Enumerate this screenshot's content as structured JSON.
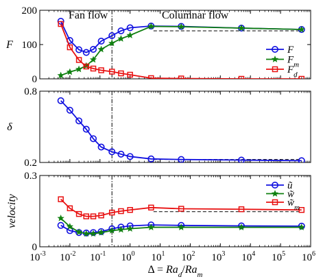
{
  "chart_data": {
    "type": "line",
    "x_scale": "log",
    "x_axis": {
      "label": "Δ = Ra_d/Ra_m",
      "label_parts": [
        {
          "t": "Δ = ",
          "i": false
        },
        {
          "t": "Ra",
          "i": true
        },
        {
          "t": "d",
          "i": true,
          "sub": true
        },
        {
          "t": "/",
          "i": false
        },
        {
          "t": "Ra",
          "i": true
        },
        {
          "t": "m",
          "i": true,
          "sub": true
        }
      ],
      "xlim": [
        0.001,
        1000000
      ],
      "ticks": [
        0.001,
        0.01,
        0.1,
        1,
        10,
        100,
        1000,
        10000,
        100000,
        1000000
      ],
      "tick_labels": [
        "-3",
        "-2",
        "-1",
        "0",
        "1",
        "2",
        "3",
        "4",
        "5",
        "6"
      ],
      "tick_base": "10"
    },
    "x": [
      0.005,
      0.01,
      0.02,
      0.035,
      0.06,
      0.11,
      0.25,
      0.5,
      1,
      5,
      50,
      5000,
      500000
    ],
    "vertical_line_x": 0.25,
    "annotations": [
      "Fan flow",
      "Columnar flow"
    ],
    "panels": [
      {
        "ylabel": "F",
        "ylim": [
          0,
          200
        ],
        "yticks": [
          0,
          100,
          200
        ],
        "legend_position": "right",
        "series": [
          {
            "name": "F",
            "marker": "circle",
            "color": "#1010e0",
            "values": [
              168,
              112,
              85,
              77,
              86,
              110,
              126,
              140,
              149,
              154,
              153,
              148,
              144
            ]
          },
          {
            "name": "F_m",
            "marker": "star",
            "color": "#108010",
            "values": [
              10,
              20,
              28,
              38,
              56,
              86,
              104,
              117,
              127,
              153,
              152,
              148,
              144
            ]
          },
          {
            "name": "F_d",
            "marker": "square",
            "color": "#e81010",
            "values": [
              160,
              92,
              55,
              36,
              30,
              25,
              21,
              16,
              12,
              2,
              1,
              0,
              0
            ]
          }
        ],
        "reference_line": {
          "y": 140,
          "x_from": 6,
          "x_to": 500000
        }
      },
      {
        "ylabel": "δ",
        "ylim": [
          0.2,
          0.8
        ],
        "yticks": [
          0.2,
          0.8
        ],
        "series": [
          {
            "name": "δ",
            "marker": "circle",
            "color": "#1010e0",
            "values": [
              0.72,
              0.64,
              0.55,
              0.48,
              0.4,
              0.33,
              0.29,
              0.27,
              0.25,
              0.23,
              0.225,
              0.22,
              0.215
            ]
          }
        ],
        "reference_line": {
          "y": 0.225,
          "x_from": 6,
          "x_to": 500000
        }
      },
      {
        "ylabel": "velocity",
        "ylim": [
          0,
          0.3
        ],
        "yticks": [
          0,
          0.3
        ],
        "legend_position": "top-right",
        "series": [
          {
            "name": "ũ",
            "marker": "circle",
            "color": "#1010e0",
            "values": [
              0.09,
              0.068,
              0.06,
              0.058,
              0.06,
              0.064,
              0.076,
              0.083,
              0.088,
              0.092,
              0.09,
              0.088,
              0.087
            ]
          },
          {
            "name": "w̃",
            "marker": "star",
            "color": "#108010",
            "values": [
              0.12,
              0.085,
              0.062,
              0.055,
              0.055,
              0.06,
              0.068,
              0.072,
              0.076,
              0.082,
              0.082,
              0.082,
              0.082
            ]
          },
          {
            "name": "w̃_m",
            "marker": "square",
            "color": "#e81010",
            "values": [
              0.2,
              0.162,
              0.138,
              0.128,
              0.128,
              0.132,
              0.144,
              0.15,
              0.155,
              0.165,
              0.16,
              0.158,
              0.155
            ]
          }
        ],
        "reference_line": {
          "y": 0.148,
          "x_from": 6,
          "x_to": 500000
        }
      }
    ]
  }
}
